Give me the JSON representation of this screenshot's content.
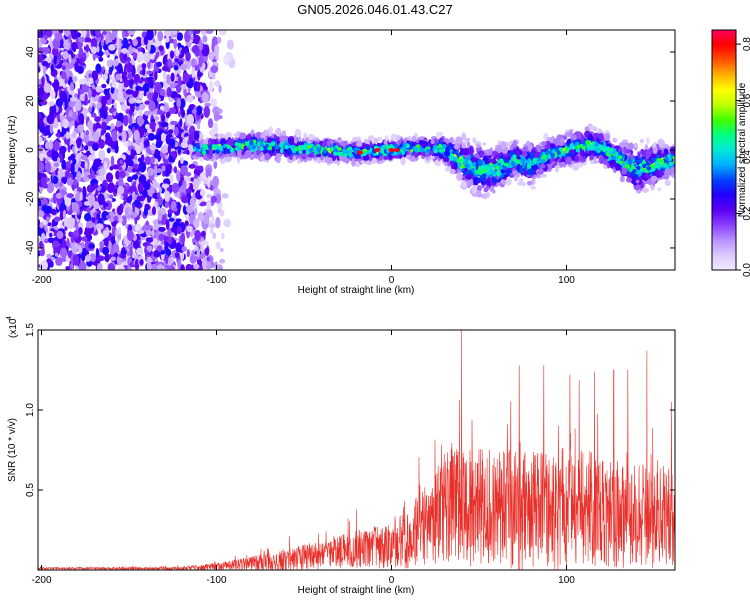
{
  "chart_data": [
    {
      "type": "heatmap",
      "title": "GN05.2026.046.01.43.C27",
      "xlabel": "Height of straight line (km)",
      "ylabel": "Frequency (Hz)",
      "xlim": [
        -202,
        162
      ],
      "ylim": [
        -49,
        49
      ],
      "xticks": [
        -200,
        -100,
        0,
        100
      ],
      "yticks": [
        -40,
        -20,
        0,
        20,
        40
      ],
      "colorbar": {
        "label": "Normalized spectral amplitude",
        "range": [
          0,
          0.85
        ],
        "ticks": [
          "0.0",
          "0.2",
          "0.4",
          "0.6",
          "0.8"
        ],
        "colormap": [
          "#f2eaff",
          "#dcc8ff",
          "#b890ff",
          "#8a40ff",
          "#5a00f0",
          "#2200ff",
          "#0040ff",
          "#00b0ff",
          "#00e8d8",
          "#00ff80",
          "#40ff00",
          "#c0ff00",
          "#ffff00",
          "#ffb000",
          "#ff5000",
          "#ff0000",
          "#ff0060"
        ]
      },
      "signal_band": {
        "x": [
          -112,
          -95,
          -80,
          -60,
          -40,
          -20,
          0,
          20,
          30,
          40,
          50,
          60,
          70,
          80,
          90,
          100,
          110,
          120,
          130,
          140,
          150,
          162
        ],
        "center_hz": [
          0,
          1,
          2,
          1,
          0,
          -1,
          0,
          1,
          0,
          -5,
          -8,
          -8,
          -4,
          -6,
          -2,
          0,
          2,
          1,
          -4,
          -8,
          -6,
          -4
        ],
        "halfwidth_hz": [
          3,
          4,
          5,
          5,
          4,
          4,
          4,
          4,
          5,
          8,
          10,
          9,
          7,
          8,
          6,
          6,
          7,
          6,
          7,
          9,
          8,
          6
        ],
        "peak_amplitude": 0.85
      },
      "noise_region_x": [
        -202,
        -97
      ]
    },
    {
      "type": "line",
      "xlabel": "Height of straight line (km)",
      "ylabel": "SNR (10 * v/v)",
      "multiplier_label": "(x10",
      "multiplier_exponent": "4",
      "xlim": [
        -202,
        162
      ],
      "ylim": [
        0,
        1.5
      ],
      "xticks": [
        -200,
        -100,
        0,
        100
      ],
      "yticks": [
        "0.5",
        "1.0",
        "1.5"
      ],
      "color": "#e8302a",
      "envelope": {
        "x": [
          -202,
          -120,
          -100,
          -80,
          -60,
          -40,
          -20,
          0,
          10,
          20,
          25,
          30,
          40,
          60,
          80,
          100,
          120,
          140,
          162
        ],
        "mean": [
          0.01,
          0.01,
          0.02,
          0.04,
          0.06,
          0.1,
          0.13,
          0.15,
          0.2,
          0.28,
          0.35,
          0.38,
          0.4,
          0.38,
          0.36,
          0.38,
          0.38,
          0.34,
          0.33
        ],
        "spread": [
          0.005,
          0.008,
          0.02,
          0.04,
          0.06,
          0.08,
          0.1,
          0.12,
          0.16,
          0.22,
          0.28,
          0.3,
          0.32,
          0.32,
          0.32,
          0.32,
          0.3,
          0.28,
          0.26
        ]
      },
      "spikes": [
        {
          "x": 40,
          "y": 1.5
        },
        {
          "x": 146,
          "y": 1.37
        },
        {
          "x": 116,
          "y": 1.24
        },
        {
          "x": 73,
          "y": 1.28
        },
        {
          "x": 87,
          "y": 1.28
        },
        {
          "x": 102,
          "y": 1.22
        },
        {
          "x": 127,
          "y": 1.25
        },
        {
          "x": 135,
          "y": 1.25
        },
        {
          "x": 160,
          "y": 1.05
        }
      ]
    }
  ]
}
